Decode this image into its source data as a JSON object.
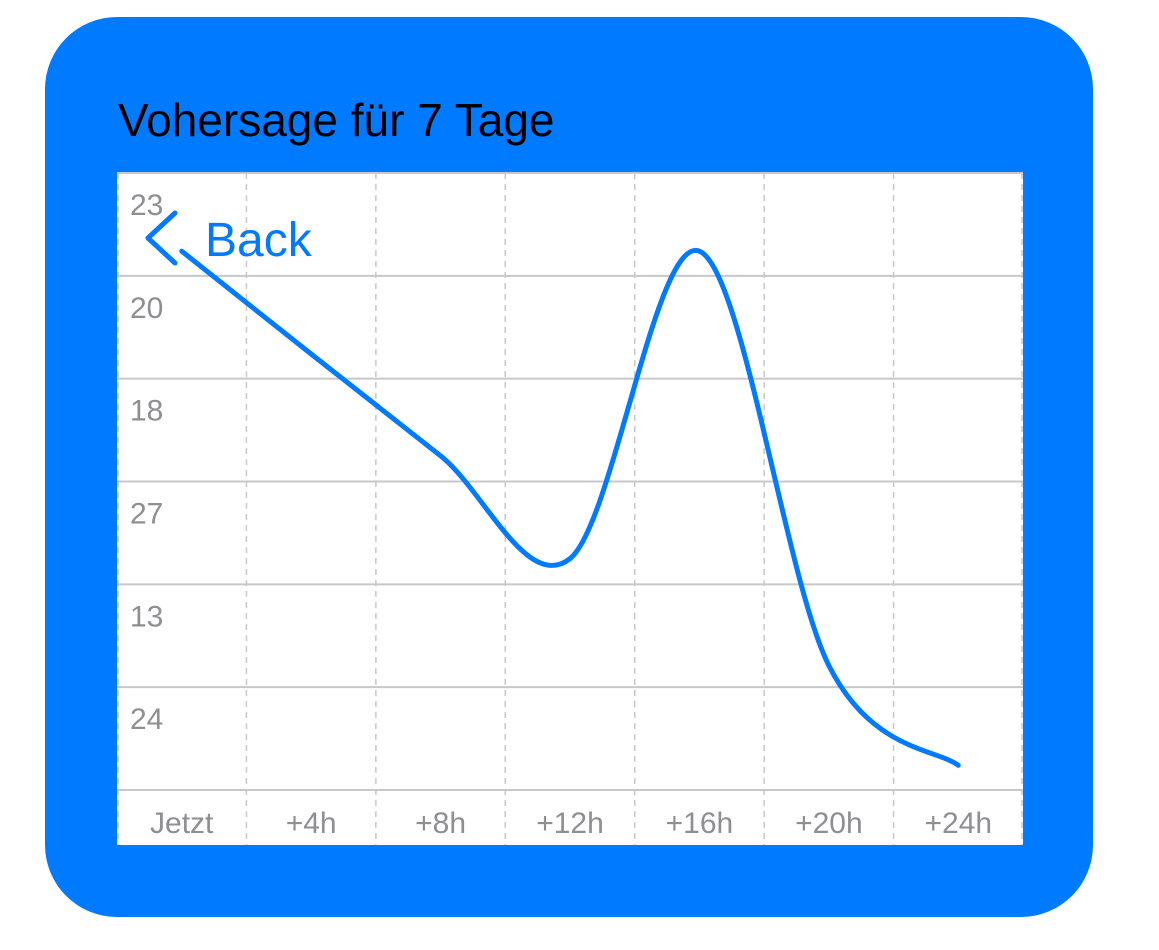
{
  "title": "Vohersage für 7 Tage",
  "back_button": "Back",
  "chart_data": {
    "type": "line",
    "categories": [
      "Jetzt",
      "+4h",
      "+8h",
      "+12h",
      "+16h",
      "+20h",
      "+24h"
    ],
    "values": [
      5.24,
      4.24,
      3.25,
      2.25,
      5.24,
      1.21,
      0.24
    ],
    "color": "#007aff",
    "ylim": [
      0,
      6
    ],
    "yticks": [
      {
        "value": 6,
        "label": "23"
      },
      {
        "value": 5,
        "label": "20"
      },
      {
        "value": 4,
        "label": "18"
      },
      {
        "value": 3,
        "label": "27"
      },
      {
        "value": 2,
        "label": "13"
      },
      {
        "value": 1,
        "label": "24"
      }
    ],
    "grid": true
  }
}
